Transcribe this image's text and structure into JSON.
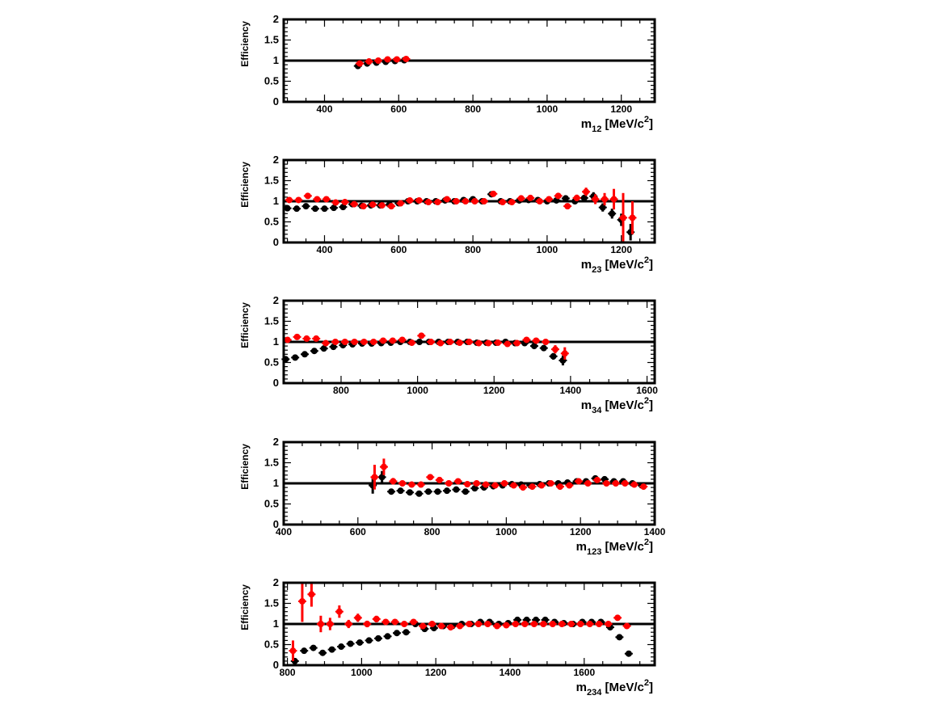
{
  "chart_data": [
    {
      "type": "scatter",
      "xlabel_main": "m",
      "xlabel_sub": "12",
      "xlabel_unit": " [MeV/c",
      "xlabel_sup": "2",
      "xlabel_end": "]",
      "ylabel": "Efficiency",
      "xlim": [
        290,
        1290
      ],
      "ylim": [
        0,
        2
      ],
      "xticks": [
        400,
        600,
        800,
        1000,
        1200
      ],
      "yticks": [
        0,
        0.5,
        1,
        1.5,
        2
      ],
      "reference_line": 1,
      "colors": {
        "black_series": "#000000",
        "red_series": "#ff0000"
      },
      "series": [
        {
          "color": "black",
          "x": [
            490,
            515,
            540,
            565,
            590,
            615
          ],
          "y": [
            0.87,
            0.93,
            0.95,
            0.97,
            0.99,
            1.01
          ],
          "err": [
            0.04,
            0.03,
            0.03,
            0.03,
            0.03,
            0.03
          ]
        },
        {
          "color": "red",
          "x": [
            495,
            520,
            545,
            570,
            595,
            620
          ],
          "y": [
            0.93,
            0.98,
            1.0,
            1.03,
            1.03,
            1.04
          ],
          "err": [
            0.03,
            0.03,
            0.03,
            0.03,
            0.03,
            0.03
          ]
        }
      ]
    },
    {
      "type": "scatter",
      "xlabel_main": "m",
      "xlabel_sub": "23",
      "xlabel_unit": " [MeV/c",
      "xlabel_sup": "2",
      "xlabel_end": "]",
      "ylabel": "Efficiency",
      "xlim": [
        290,
        1290
      ],
      "ylim": [
        0,
        2
      ],
      "xticks": [
        400,
        600,
        800,
        1000,
        1200
      ],
      "yticks": [
        0,
        0.5,
        1,
        1.5,
        2
      ],
      "reference_line": 1,
      "colors": {
        "black_series": "#000000",
        "red_series": "#ff0000"
      },
      "series": [
        {
          "color": "black",
          "x": [
            300,
            325,
            350,
            375,
            400,
            425,
            450,
            475,
            500,
            525,
            550,
            575,
            600,
            625,
            650,
            675,
            700,
            725,
            750,
            775,
            800,
            825,
            850,
            875,
            900,
            925,
            950,
            975,
            1000,
            1025,
            1050,
            1075,
            1100,
            1125,
            1150,
            1175,
            1200,
            1225
          ],
          "y": [
            0.83,
            0.82,
            0.88,
            0.82,
            0.82,
            0.84,
            0.86,
            0.93,
            0.89,
            0.9,
            0.9,
            0.92,
            0.95,
            1.0,
            1.0,
            1.0,
            1.0,
            1.02,
            1.0,
            1.03,
            1.05,
            1.0,
            1.17,
            1.0,
            1.0,
            1.02,
            1.03,
            1.03,
            1.0,
            1.02,
            1.07,
            1.0,
            1.08,
            1.12,
            0.85,
            0.7,
            0.55,
            0.25
          ],
          "err": [
            0.04,
            0.03,
            0.03,
            0.03,
            0.03,
            0.03,
            0.03,
            0.03,
            0.03,
            0.03,
            0.03,
            0.03,
            0.03,
            0.03,
            0.03,
            0.03,
            0.03,
            0.03,
            0.03,
            0.03,
            0.03,
            0.03,
            0.04,
            0.03,
            0.03,
            0.03,
            0.03,
            0.03,
            0.03,
            0.03,
            0.05,
            0.05,
            0.07,
            0.1,
            0.1,
            0.12,
            0.15,
            0.2
          ]
        },
        {
          "color": "red",
          "x": [
            305,
            330,
            355,
            380,
            405,
            430,
            455,
            480,
            505,
            530,
            555,
            580,
            605,
            630,
            655,
            680,
            705,
            730,
            755,
            780,
            805,
            830,
            855,
            880,
            905,
            930,
            955,
            980,
            1005,
            1030,
            1055,
            1080,
            1105,
            1130,
            1155,
            1180,
            1205,
            1230
          ],
          "y": [
            1.03,
            1.03,
            1.13,
            1.05,
            1.05,
            0.97,
            0.98,
            0.93,
            0.88,
            0.92,
            0.9,
            0.88,
            0.95,
            1.02,
            1.02,
            0.98,
            0.98,
            1.05,
            1.0,
            1.0,
            1.0,
            1.0,
            1.18,
            0.98,
            0.98,
            1.07,
            1.08,
            1.0,
            1.05,
            1.13,
            0.88,
            1.08,
            1.23,
            1.05,
            1.05,
            1.05,
            0.6,
            0.6
          ],
          "err": [
            0.04,
            0.03,
            0.03,
            0.03,
            0.03,
            0.03,
            0.03,
            0.03,
            0.03,
            0.03,
            0.03,
            0.03,
            0.03,
            0.03,
            0.03,
            0.03,
            0.03,
            0.03,
            0.03,
            0.03,
            0.03,
            0.03,
            0.04,
            0.03,
            0.03,
            0.03,
            0.03,
            0.03,
            0.03,
            0.05,
            0.05,
            0.08,
            0.1,
            0.12,
            0.15,
            0.25,
            0.6,
            0.4
          ]
        }
      ]
    },
    {
      "type": "scatter",
      "xlabel_main": "m",
      "xlabel_sub": "34",
      "xlabel_unit": " [MeV/c",
      "xlabel_sup": "2",
      "xlabel_end": "]",
      "ylabel": "Efficiency",
      "xlim": [
        650,
        1620
      ],
      "ylim": [
        0,
        2
      ],
      "xticks": [
        800,
        1000,
        1200,
        1400,
        1600
      ],
      "yticks": [
        0,
        0.5,
        1,
        1.5,
        2
      ],
      "reference_line": 1,
      "colors": {
        "black_series": "#000000",
        "red_series": "#ff0000"
      },
      "series": [
        {
          "color": "black",
          "x": [
            655,
            680,
            705,
            730,
            755,
            780,
            805,
            830,
            855,
            880,
            905,
            930,
            955,
            980,
            1005,
            1030,
            1055,
            1080,
            1105,
            1130,
            1155,
            1180,
            1205,
            1230,
            1255,
            1280,
            1305,
            1330,
            1355,
            1380
          ],
          "y": [
            0.58,
            0.62,
            0.7,
            0.78,
            0.84,
            0.88,
            0.92,
            0.94,
            0.96,
            0.96,
            0.97,
            0.98,
            1.0,
            1.0,
            1.0,
            1.0,
            1.0,
            1.0,
            1.0,
            1.0,
            0.98,
            0.98,
            0.98,
            1.0,
            0.97,
            0.97,
            0.9,
            0.85,
            0.65,
            0.55
          ],
          "err": [
            0.04,
            0.03,
            0.03,
            0.03,
            0.03,
            0.03,
            0.03,
            0.03,
            0.03,
            0.03,
            0.03,
            0.03,
            0.03,
            0.03,
            0.03,
            0.03,
            0.03,
            0.03,
            0.03,
            0.03,
            0.03,
            0.03,
            0.03,
            0.03,
            0.03,
            0.03,
            0.04,
            0.05,
            0.08,
            0.12
          ]
        },
        {
          "color": "red",
          "x": [
            660,
            685,
            710,
            735,
            760,
            785,
            810,
            835,
            860,
            885,
            910,
            935,
            960,
            985,
            1010,
            1035,
            1060,
            1085,
            1110,
            1135,
            1160,
            1185,
            1210,
            1235,
            1260,
            1285,
            1310,
            1335,
            1360,
            1385
          ],
          "y": [
            1.05,
            1.12,
            1.08,
            1.08,
            0.97,
            1.0,
            1.0,
            1.0,
            1.0,
            1.0,
            1.03,
            1.03,
            1.05,
            0.98,
            1.15,
            1.0,
            0.97,
            1.0,
            0.98,
            1.0,
            0.97,
            0.97,
            0.98,
            0.95,
            0.97,
            1.05,
            1.03,
            1.0,
            0.82,
            0.72
          ],
          "err": [
            0.04,
            0.03,
            0.03,
            0.03,
            0.03,
            0.03,
            0.03,
            0.03,
            0.03,
            0.03,
            0.03,
            0.03,
            0.03,
            0.03,
            0.04,
            0.03,
            0.03,
            0.03,
            0.03,
            0.03,
            0.03,
            0.03,
            0.03,
            0.03,
            0.03,
            0.03,
            0.04,
            0.05,
            0.1,
            0.15
          ]
        }
      ]
    },
    {
      "type": "scatter",
      "xlabel_main": "m",
      "xlabel_sub": "123",
      "xlabel_unit": " [MeV/c",
      "xlabel_sup": "2",
      "xlabel_end": "]",
      "ylabel": "Efficiency",
      "xlim": [
        400,
        1400
      ],
      "ylim": [
        0,
        2
      ],
      "xticks": [
        400,
        600,
        800,
        1000,
        1200,
        1400
      ],
      "yticks": [
        0,
        0.5,
        1,
        1.5,
        2
      ],
      "reference_line": 1,
      "colors": {
        "black_series": "#000000",
        "red_series": "#ff0000"
      },
      "series": [
        {
          "color": "black",
          "x": [
            640,
            665,
            690,
            715,
            740,
            765,
            790,
            815,
            840,
            865,
            890,
            915,
            940,
            965,
            990,
            1015,
            1040,
            1065,
            1090,
            1115,
            1140,
            1165,
            1190,
            1215,
            1240,
            1265,
            1290,
            1315,
            1340,
            1365
          ],
          "y": [
            0.95,
            1.15,
            0.8,
            0.82,
            0.78,
            0.75,
            0.8,
            0.8,
            0.82,
            0.85,
            0.8,
            0.88,
            0.9,
            0.93,
            0.95,
            0.98,
            0.97,
            0.95,
            0.98,
            1.0,
            1.0,
            1.02,
            1.05,
            1.05,
            1.12,
            1.1,
            1.05,
            1.05,
            1.0,
            0.95
          ],
          "err": [
            0.2,
            0.15,
            0.04,
            0.03,
            0.03,
            0.03,
            0.03,
            0.03,
            0.03,
            0.03,
            0.03,
            0.03,
            0.03,
            0.03,
            0.03,
            0.03,
            0.03,
            0.03,
            0.03,
            0.03,
            0.03,
            0.03,
            0.03,
            0.03,
            0.03,
            0.03,
            0.03,
            0.03,
            0.03,
            0.03
          ]
        },
        {
          "color": "red",
          "x": [
            645,
            670,
            695,
            720,
            745,
            770,
            795,
            820,
            845,
            870,
            895,
            920,
            945,
            970,
            995,
            1020,
            1045,
            1070,
            1095,
            1120,
            1145,
            1170,
            1195,
            1220,
            1245,
            1270,
            1295,
            1320,
            1345,
            1370
          ],
          "y": [
            1.15,
            1.4,
            1.05,
            1.0,
            0.97,
            0.97,
            1.15,
            1.08,
            1.0,
            1.05,
            0.98,
            1.0,
            0.97,
            0.95,
            1.0,
            0.95,
            0.9,
            0.92,
            0.95,
            1.0,
            0.92,
            0.95,
            1.05,
            1.0,
            1.08,
            1.0,
            1.0,
            1.0,
            0.97,
            0.92
          ],
          "err": [
            0.3,
            0.2,
            0.08,
            0.06,
            0.05,
            0.04,
            0.04,
            0.04,
            0.03,
            0.03,
            0.03,
            0.03,
            0.03,
            0.03,
            0.03,
            0.03,
            0.03,
            0.03,
            0.03,
            0.03,
            0.03,
            0.03,
            0.03,
            0.03,
            0.03,
            0.03,
            0.03,
            0.03,
            0.03,
            0.03
          ]
        }
      ]
    },
    {
      "type": "scatter",
      "xlabel_main": "m",
      "xlabel_sub": "234",
      "xlabel_unit": " [MeV/c",
      "xlabel_sup": "2",
      "xlabel_end": "]",
      "ylabel": "Efficiency",
      "xlim": [
        790,
        1790
      ],
      "ylim": [
        0,
        2
      ],
      "xticks": [
        800,
        1000,
        1200,
        1400,
        1600
      ],
      "yticks": [
        0,
        0.5,
        1,
        1.5,
        2
      ],
      "reference_line": 1,
      "colors": {
        "black_series": "#000000",
        "red_series": "#ff0000"
      },
      "series": [
        {
          "color": "black",
          "x": [
            820,
            845,
            870,
            895,
            920,
            945,
            970,
            995,
            1020,
            1045,
            1070,
            1095,
            1120,
            1145,
            1170,
            1195,
            1220,
            1245,
            1270,
            1295,
            1320,
            1345,
            1370,
            1395,
            1420,
            1445,
            1470,
            1495,
            1520,
            1545,
            1570,
            1595,
            1620,
            1645,
            1670,
            1695,
            1720
          ],
          "y": [
            0.1,
            0.35,
            0.42,
            0.3,
            0.38,
            0.45,
            0.52,
            0.55,
            0.6,
            0.65,
            0.7,
            0.78,
            0.8,
            1.0,
            0.88,
            0.9,
            0.95,
            0.95,
            1.0,
            1.0,
            1.05,
            1.05,
            1.0,
            1.02,
            1.1,
            1.1,
            1.1,
            1.1,
            1.05,
            1.02,
            1.0,
            1.05,
            1.05,
            1.05,
            0.92,
            0.68,
            0.28
          ],
          "err": [
            0.05,
            0.04,
            0.04,
            0.03,
            0.03,
            0.03,
            0.03,
            0.03,
            0.03,
            0.03,
            0.03,
            0.03,
            0.03,
            0.03,
            0.03,
            0.03,
            0.03,
            0.03,
            0.03,
            0.03,
            0.03,
            0.03,
            0.03,
            0.03,
            0.03,
            0.03,
            0.03,
            0.03,
            0.03,
            0.03,
            0.03,
            0.03,
            0.03,
            0.03,
            0.05,
            0.05,
            0.04
          ]
        },
        {
          "color": "red",
          "x": [
            815,
            840,
            865,
            890,
            915,
            940,
            965,
            990,
            1015,
            1040,
            1065,
            1090,
            1115,
            1140,
            1165,
            1190,
            1215,
            1240,
            1265,
            1290,
            1315,
            1340,
            1365,
            1390,
            1415,
            1440,
            1465,
            1490,
            1515,
            1540,
            1565,
            1590,
            1615,
            1640,
            1665,
            1690,
            1715
          ],
          "y": [
            0.35,
            1.55,
            1.72,
            1.0,
            1.0,
            1.3,
            1.0,
            1.15,
            1.0,
            1.12,
            1.05,
            1.05,
            1.0,
            1.05,
            0.95,
            1.0,
            0.95,
            0.92,
            0.95,
            1.0,
            1.0,
            1.0,
            0.95,
            0.97,
            1.0,
            1.0,
            1.0,
            1.0,
            1.0,
            1.0,
            1.0,
            1.0,
            1.0,
            1.0,
            1.0,
            1.15,
            0.95
          ],
          "err": [
            0.25,
            0.5,
            0.3,
            0.2,
            0.15,
            0.15,
            0.1,
            0.1,
            0.08,
            0.08,
            0.06,
            0.05,
            0.05,
            0.04,
            0.04,
            0.04,
            0.03,
            0.03,
            0.03,
            0.03,
            0.03,
            0.03,
            0.03,
            0.03,
            0.03,
            0.03,
            0.03,
            0.03,
            0.03,
            0.03,
            0.03,
            0.03,
            0.03,
            0.03,
            0.03,
            0.04,
            0.03
          ]
        }
      ]
    }
  ]
}
